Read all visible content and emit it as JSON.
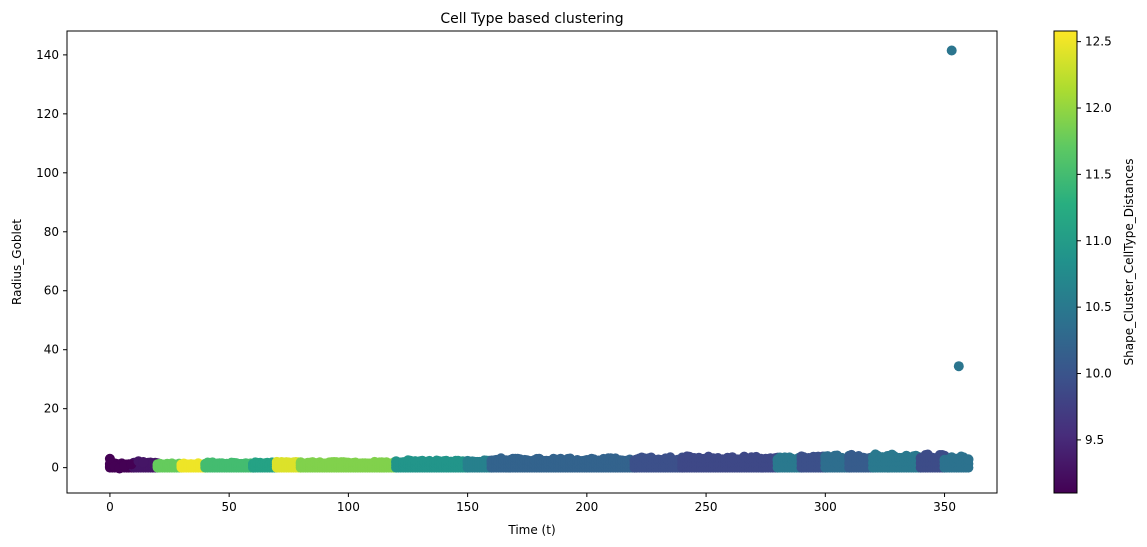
{
  "chart_data": {
    "type": "scatter",
    "title": "Cell Type based clustering",
    "xlabel": "Time (t)",
    "ylabel": "Radius_Goblet",
    "xlim": [
      -18,
      372
    ],
    "ylim": [
      -8.6,
      148.1
    ],
    "xticks": [
      0,
      50,
      100,
      150,
      200,
      250,
      300,
      350
    ],
    "yticks": [
      0,
      20,
      40,
      60,
      80,
      100,
      120,
      140
    ],
    "colorbar": {
      "label": "Shape_Cluster_CellType_Distances",
      "range": [
        9.1,
        12.58
      ],
      "ticks": [
        9.5,
        10.0,
        10.5,
        11.0,
        11.5,
        12.0,
        12.5
      ],
      "colormap": "viridis"
    },
    "segments": [
      {
        "x_start": 0,
        "x_end": 10,
        "c": 9.1,
        "y_max": 1.5
      },
      {
        "x_start": 10,
        "x_end": 20,
        "c": 9.3,
        "y_max": 2.0
      },
      {
        "x_start": 20,
        "x_end": 30,
        "c": 11.75,
        "y_max": 1.5
      },
      {
        "x_start": 30,
        "x_end": 40,
        "c": 12.5,
        "y_max": 1.5
      },
      {
        "x_start": 40,
        "x_end": 60,
        "c": 11.5,
        "y_max": 1.8
      },
      {
        "x_start": 60,
        "x_end": 70,
        "c": 11.1,
        "y_max": 1.8
      },
      {
        "x_start": 70,
        "x_end": 80,
        "c": 12.4,
        "y_max": 2.0
      },
      {
        "x_start": 80,
        "x_end": 120,
        "c": 11.9,
        "y_max": 2.0
      },
      {
        "x_start": 120,
        "x_end": 150,
        "c": 10.9,
        "y_max": 2.5
      },
      {
        "x_start": 150,
        "x_end": 160,
        "c": 10.6,
        "y_max": 2.8
      },
      {
        "x_start": 160,
        "x_end": 220,
        "c": 10.2,
        "y_max": 3.2
      },
      {
        "x_start": 220,
        "x_end": 240,
        "c": 9.95,
        "y_max": 3.5
      },
      {
        "x_start": 240,
        "x_end": 280,
        "c": 9.85,
        "y_max": 4.0
      },
      {
        "x_start": 280,
        "x_end": 290,
        "c": 10.5,
        "y_max": 4.0
      },
      {
        "x_start": 290,
        "x_end": 300,
        "c": 9.95,
        "y_max": 4.0
      },
      {
        "x_start": 300,
        "x_end": 310,
        "c": 10.35,
        "y_max": 4.2
      },
      {
        "x_start": 310,
        "x_end": 320,
        "c": 10.1,
        "y_max": 4.5
      },
      {
        "x_start": 320,
        "x_end": 340,
        "c": 10.5,
        "y_max": 4.5
      },
      {
        "x_start": 340,
        "x_end": 350,
        "c": 9.9,
        "y_max": 4.5
      },
      {
        "x_start": 350,
        "x_end": 360,
        "c": 10.4,
        "y_max": 3.8
      }
    ],
    "points": [
      {
        "x": 0,
        "y": 3.0,
        "c": 9.1
      },
      {
        "x": 2,
        "y": 0.4,
        "c": 9.1
      },
      {
        "x": 4,
        "y": -0.3,
        "c": 9.1
      },
      {
        "x": 6,
        "y": 0.6,
        "c": 9.1
      },
      {
        "x": 9,
        "y": 1.1,
        "c": 9.1
      },
      {
        "x": 12,
        "y": 2.2,
        "c": 9.3
      },
      {
        "x": 14,
        "y": 1.8,
        "c": 9.3
      },
      {
        "x": 353,
        "y": 141.5,
        "c": 10.45
      },
      {
        "x": 356,
        "y": 34.4,
        "c": 10.45
      }
    ]
  }
}
